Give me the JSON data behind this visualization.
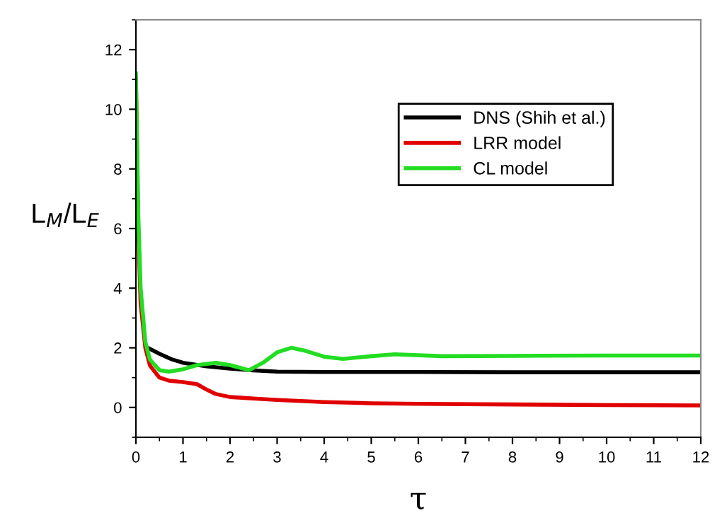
{
  "chart_data": {
    "type": "line",
    "xlabel": "τ",
    "ylabel": "L$_{M}$/L$_{E}$",
    "xlim": [
      0,
      12
    ],
    "xticks": [
      0,
      1,
      2,
      3,
      4,
      5,
      6,
      7,
      8,
      9,
      10,
      11,
      12
    ],
    "ylim": [
      -1,
      13
    ],
    "yticks": [
      0,
      2,
      4,
      6,
      8,
      10,
      12
    ],
    "grid": false,
    "legend": "upper right",
    "marker": "none",
    "line_style": "solid",
    "series": [
      {
        "name": "DNS (Shih et al.)",
        "color": "#000000",
        "x": [
          0.25,
          0.5,
          0.75,
          1,
          1.5,
          2,
          2.5,
          3,
          4,
          5,
          6,
          8,
          10,
          12
        ],
        "values": [
          2.0,
          1.8,
          1.62,
          1.5,
          1.38,
          1.3,
          1.24,
          1.2,
          1.19,
          1.19,
          1.19,
          1.18,
          1.18,
          1.18
        ]
      },
      {
        "name": "LRR model",
        "color": "#e00000",
        "x": [
          0,
          0.05,
          0.1,
          0.2,
          0.3,
          0.5,
          0.7,
          1,
          1.3,
          1.5,
          1.7,
          2,
          2.5,
          3,
          4,
          5,
          6,
          8,
          10,
          12
        ],
        "values": [
          11.0,
          6.0,
          3.5,
          2.0,
          1.4,
          1.0,
          0.9,
          0.85,
          0.78,
          0.6,
          0.45,
          0.35,
          0.3,
          0.25,
          0.18,
          0.14,
          0.12,
          0.1,
          0.08,
          0.07
        ]
      },
      {
        "name": "CL model",
        "color": "#22dd22",
        "x": [
          0,
          0.05,
          0.1,
          0.2,
          0.3,
          0.5,
          0.7,
          1,
          1.3,
          1.7,
          2,
          2.4,
          2.7,
          3,
          3.3,
          3.6,
          4,
          4.4,
          5,
          5.5,
          6.5,
          8,
          10,
          12
        ],
        "values": [
          11.2,
          6.5,
          4.0,
          2.2,
          1.6,
          1.25,
          1.2,
          1.28,
          1.42,
          1.5,
          1.42,
          1.25,
          1.5,
          1.85,
          2.0,
          1.9,
          1.7,
          1.63,
          1.72,
          1.78,
          1.72,
          1.73,
          1.74,
          1.74
        ]
      }
    ]
  }
}
